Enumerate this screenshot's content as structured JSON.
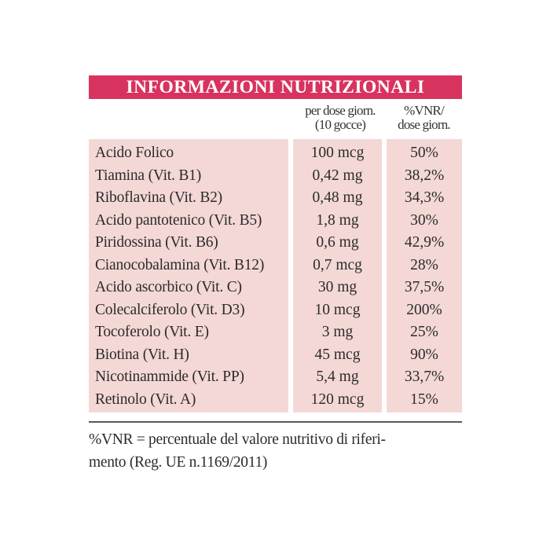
{
  "header": {
    "title": "INFORMAZIONI NUTRIZIONALI"
  },
  "columns": {
    "dose_line1": "per dose giorn.",
    "dose_line2": "(10 gocce)",
    "vnr_line1": "%VNR/",
    "vnr_line2": "dose giorn."
  },
  "colors": {
    "header_bar": "#d8335f",
    "cell_background": "#f4d8d6",
    "header_text": "#ffffff"
  },
  "rows": [
    {
      "name": "Acido Folico",
      "dose": "100 mcg",
      "vnr": "50%"
    },
    {
      "name": "Tiamina (Vit. B1)",
      "dose": "0,42 mg",
      "vnr": "38,2%"
    },
    {
      "name": "Riboflavina (Vit. B2)",
      "dose": "0,48 mg",
      "vnr": "34,3%"
    },
    {
      "name": "Acido pantotenico (Vit. B5)",
      "dose": "1,8 mg",
      "vnr": "30%"
    },
    {
      "name": "Piridossina (Vit. B6)",
      "dose": "0,6 mg",
      "vnr": "42,9%"
    },
    {
      "name": "Cianocobalamina (Vit. B12)",
      "dose": "0,7 mcg",
      "vnr": "28%"
    },
    {
      "name": "Acido ascorbico (Vit. C)",
      "dose": "30 mg",
      "vnr": "37,5%"
    },
    {
      "name": "Colecalciferolo (Vit. D3)",
      "dose": "10 mcg",
      "vnr": "200%"
    },
    {
      "name": "Tocoferolo (Vit. E)",
      "dose": "3 mg",
      "vnr": "25%"
    },
    {
      "name": "Biotina (Vit. H)",
      "dose": "45 mcg",
      "vnr": "90%"
    },
    {
      "name": "Nicotinammide (Vit. PP)",
      "dose": "5,4 mg",
      "vnr": "33,7%"
    },
    {
      "name": "Retinolo (Vit. A)",
      "dose": "120 mcg",
      "vnr": "15%"
    }
  ],
  "footnote": {
    "line1": "%VNR = percentuale del valore nutritivo di riferi-",
    "line2": "mento (Reg. UE n.1169/2011)"
  }
}
